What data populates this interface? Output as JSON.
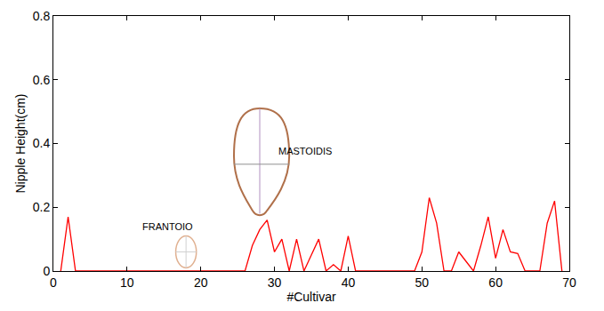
{
  "chart_data": {
    "type": "line",
    "x_label": "#Cultivar",
    "y_label": "Nipple Height(cm)",
    "annotations": [
      "MASTOIDIS",
      "FRANTOIO"
    ],
    "color": "#ff0000",
    "x": [
      1,
      2,
      3,
      4,
      5,
      6,
      7,
      8,
      9,
      10,
      11,
      12,
      13,
      14,
      15,
      16,
      17,
      18,
      19,
      20,
      21,
      22,
      23,
      24,
      25,
      26,
      27,
      28,
      29,
      30,
      31,
      32,
      33,
      34,
      35,
      36,
      37,
      38,
      39,
      40,
      41,
      42,
      43,
      44,
      45,
      46,
      47,
      48,
      49,
      50,
      51,
      52,
      53,
      54,
      55,
      56,
      57,
      58,
      59,
      60,
      61,
      62,
      63,
      64,
      65,
      66,
      67,
      68,
      69
    ],
    "values": [
      0,
      0.17,
      0,
      0,
      0,
      0,
      0,
      0,
      0,
      0,
      0,
      0,
      0,
      0,
      0,
      0,
      0,
      0,
      0,
      0,
      0,
      0,
      0,
      0,
      0,
      0,
      0.08,
      0.13,
      0.16,
      0.06,
      0.1,
      0,
      0.1,
      0,
      0.05,
      0.1,
      0,
      0.02,
      0,
      0.11,
      0,
      0,
      0,
      0,
      0,
      0,
      0,
      0,
      0,
      0.06,
      0.23,
      0.15,
      0,
      0,
      0.06,
      0.03,
      0,
      0.08,
      0.17,
      0.04,
      0.13,
      0.06,
      0.055,
      0,
      0,
      0,
      0.15,
      0.22,
      0
    ],
    "xlim": [
      0,
      70
    ],
    "xticks": [
      0,
      10,
      20,
      30,
      40,
      50,
      60,
      70
    ],
    "ylim": [
      0,
      0.8
    ],
    "yticks": [
      0,
      0.2,
      0.4,
      0.6,
      0.8
    ],
    "grid": false
  }
}
